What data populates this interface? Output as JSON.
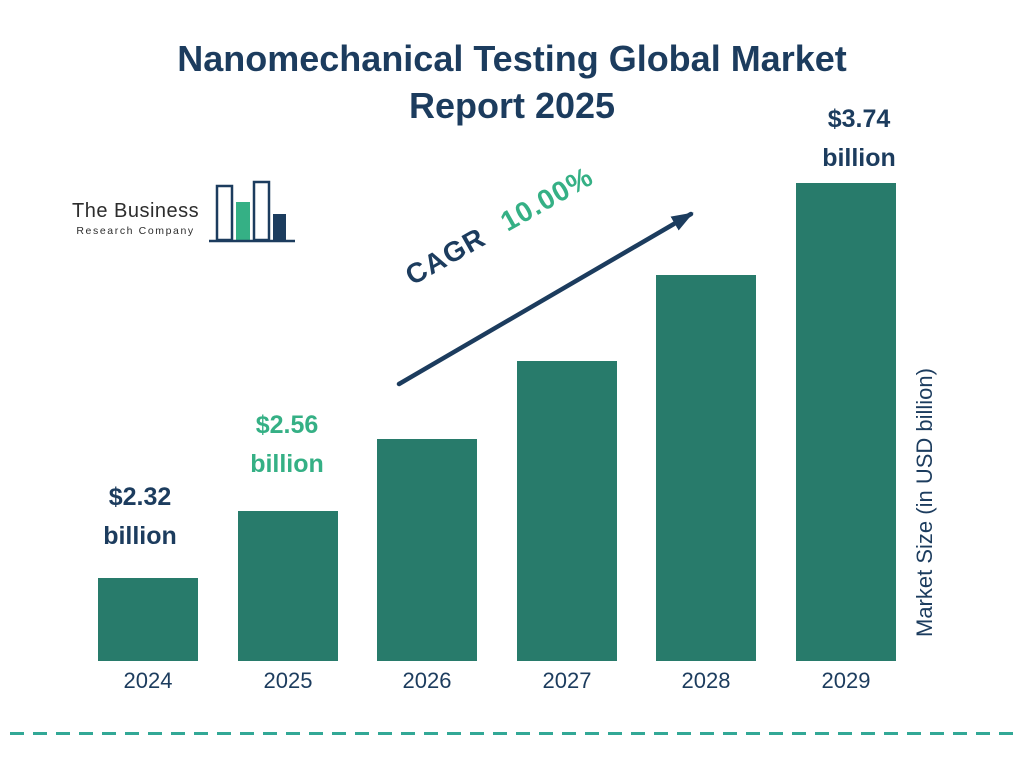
{
  "colors": {
    "navy": "#1c3c5e",
    "bar": "#287b6b",
    "green": "#35b085",
    "dash": "#32a896",
    "logotext": "#2d2d2d"
  },
  "logo": {
    "line1": "The Business",
    "line2": "Research Company"
  },
  "chart_data": {
    "type": "bar",
    "title": "Nanomechanical Testing Global Market Report 2025",
    "categories": [
      "2024",
      "2025",
      "2026",
      "2027",
      "2028",
      "2029"
    ],
    "values": [
      2.32,
      2.56,
      2.82,
      3.1,
      3.41,
      3.74
    ],
    "ylabel": "Market Size (in USD billion)",
    "xlabel": "",
    "ylim": [
      2.0,
      4.0
    ],
    "grid": false,
    "legend": "none",
    "cagr": {
      "label": "CAGR",
      "value": "10.00%"
    },
    "value_labels": [
      {
        "index": 0,
        "amount": "$2.32",
        "unit": "billion",
        "emphasis": "navy"
      },
      {
        "index": 1,
        "amount": "$2.56",
        "unit": "billion",
        "emphasis": "green"
      },
      {
        "index": 5,
        "amount": "$3.74",
        "unit": "billion",
        "emphasis": "navy"
      }
    ]
  }
}
